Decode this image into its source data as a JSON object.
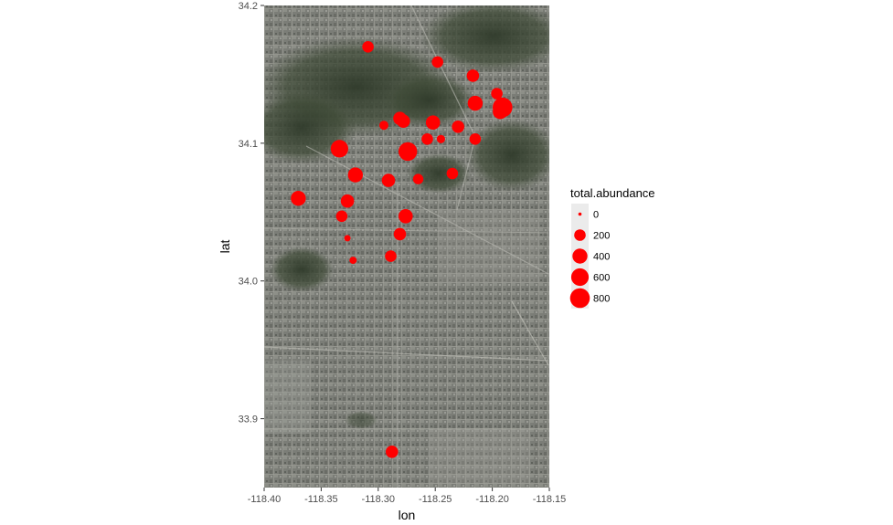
{
  "chart_data": {
    "type": "scatter",
    "background": "satellite-map",
    "xlabel": "lon",
    "ylabel": "lat",
    "xlim": [
      -118.4,
      -118.15
    ],
    "ylim": [
      33.85,
      34.2
    ],
    "x_ticks": [
      -118.4,
      -118.35,
      -118.3,
      -118.25,
      -118.2,
      -118.15
    ],
    "x_tick_labels": [
      "-118.40",
      "-118.35",
      "-118.30",
      "-118.25",
      "-118.20",
      "-118.15"
    ],
    "y_ticks": [
      33.9,
      34.0,
      34.1,
      34.2
    ],
    "y_tick_labels": [
      "33.9",
      "34.0",
      "34.1",
      "34.2"
    ],
    "point_color": "#ff0000",
    "size_variable": "total.abundance",
    "size_range": [
      0,
      800
    ],
    "legend": {
      "title": "total.abundance",
      "placement": "right",
      "entries": [
        {
          "label": "0",
          "value": 0
        },
        {
          "label": "200",
          "value": 200
        },
        {
          "label": "400",
          "value": 400
        },
        {
          "label": "600",
          "value": 600
        },
        {
          "label": "800",
          "value": 800
        }
      ]
    },
    "points": [
      {
        "lon": -118.309,
        "lat": 34.17,
        "total_abundance": 200
      },
      {
        "lon": -118.248,
        "lat": 34.159,
        "total_abundance": 200
      },
      {
        "lon": -118.217,
        "lat": 34.149,
        "total_abundance": 250
      },
      {
        "lon": -118.196,
        "lat": 34.136,
        "total_abundance": 200
      },
      {
        "lon": -118.215,
        "lat": 34.129,
        "total_abundance": 400
      },
      {
        "lon": -118.191,
        "lat": 34.126,
        "total_abundance": 800
      },
      {
        "lon": -118.193,
        "lat": 34.123,
        "total_abundance": 400
      },
      {
        "lon": -118.281,
        "lat": 34.118,
        "total_abundance": 300
      },
      {
        "lon": -118.278,
        "lat": 34.116,
        "total_abundance": 300
      },
      {
        "lon": -118.252,
        "lat": 34.115,
        "total_abundance": 350
      },
      {
        "lon": -118.295,
        "lat": 34.113,
        "total_abundance": 100
      },
      {
        "lon": -118.23,
        "lat": 34.112,
        "total_abundance": 250
      },
      {
        "lon": -118.257,
        "lat": 34.103,
        "total_abundance": 200
      },
      {
        "lon": -118.245,
        "lat": 34.103,
        "total_abundance": 80
      },
      {
        "lon": -118.215,
        "lat": 34.103,
        "total_abundance": 200
      },
      {
        "lon": -118.334,
        "lat": 34.096,
        "total_abundance": 600
      },
      {
        "lon": -118.274,
        "lat": 34.094,
        "total_abundance": 700
      },
      {
        "lon": -118.32,
        "lat": 34.077,
        "total_abundance": 400
      },
      {
        "lon": -118.235,
        "lat": 34.078,
        "total_abundance": 200
      },
      {
        "lon": -118.291,
        "lat": 34.073,
        "total_abundance": 300
      },
      {
        "lon": -118.265,
        "lat": 34.074,
        "total_abundance": 150
      },
      {
        "lon": -118.37,
        "lat": 34.06,
        "total_abundance": 400
      },
      {
        "lon": -118.327,
        "lat": 34.058,
        "total_abundance": 300
      },
      {
        "lon": -118.332,
        "lat": 34.047,
        "total_abundance": 200
      },
      {
        "lon": -118.276,
        "lat": 34.047,
        "total_abundance": 350
      },
      {
        "lon": -118.281,
        "lat": 34.034,
        "total_abundance": 250
      },
      {
        "lon": -118.327,
        "lat": 34.031,
        "total_abundance": 30
      },
      {
        "lon": -118.289,
        "lat": 34.018,
        "total_abundance": 200
      },
      {
        "lon": -118.322,
        "lat": 34.015,
        "total_abundance": 50
      },
      {
        "lon": -118.288,
        "lat": 33.876,
        "total_abundance": 250
      }
    ]
  }
}
